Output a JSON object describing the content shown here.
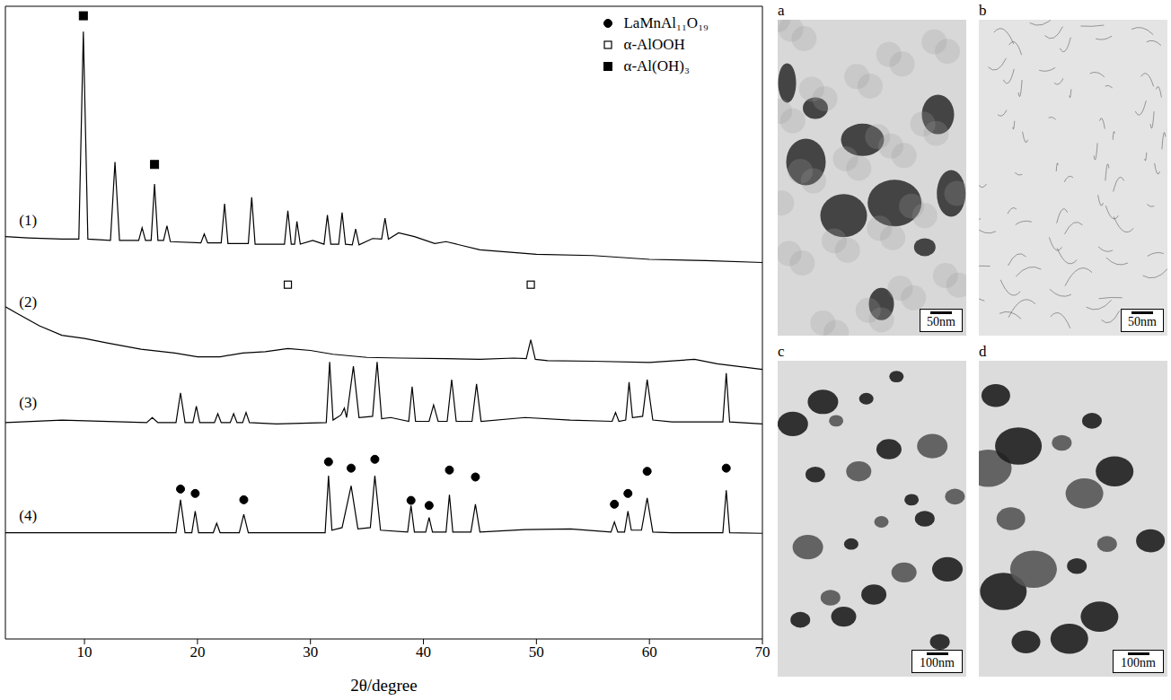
{
  "chart_data": {
    "type": "line",
    "xlabel": "2θ/degree",
    "xlim": [
      3,
      70
    ],
    "xticks": [
      10,
      20,
      30,
      40,
      50,
      60,
      70
    ],
    "ylim": [
      0,
      100
    ],
    "tick_labels": "x",
    "legend": "upper right",
    "series": [
      {
        "name": "(1)",
        "color": "#000000",
        "x": [
          3,
          5,
          8,
          9.5,
          9.9,
          10.3,
          12.3,
          12.7,
          13.1,
          14.8,
          15.1,
          15.4,
          15.9,
          16.2,
          16.5,
          17.0,
          17.3,
          17.6,
          20.3,
          20.6,
          20.9,
          22.1,
          22.4,
          22.7,
          24.5,
          24.8,
          25.1,
          27.7,
          28.0,
          28.3,
          28.6,
          28.8,
          29.1,
          30.2,
          31.2,
          31.5,
          31.8,
          32.5,
          32.8,
          33.1,
          33.7,
          34,
          34.3,
          35.5,
          36.3,
          36.6,
          36.9,
          37.8,
          39.2,
          41,
          42,
          45,
          50,
          55,
          60,
          65,
          70
        ],
        "values": [
          63.6,
          63.4,
          63.2,
          63.2,
          96.0,
          63.2,
          63.0,
          75.4,
          63.0,
          63.0,
          65.0,
          63.0,
          63.0,
          71.9,
          63.0,
          63.0,
          65.3,
          62.8,
          62.6,
          64.0,
          62.6,
          62.6,
          68.8,
          62.5,
          62.5,
          69.8,
          62.4,
          62.4,
          67.7,
          62.4,
          62.4,
          66.0,
          62.4,
          63.0,
          62.4,
          67.0,
          62.4,
          62.4,
          67.4,
          62.4,
          62.3,
          64.8,
          62.3,
          63.3,
          63.2,
          66.5,
          63.2,
          64.2,
          63.6,
          62.5,
          62.8,
          61.5,
          60.8,
          60.6,
          60.0,
          59.8,
          59.5
        ]
      },
      {
        "name": "(2)",
        "color": "#000000",
        "x": [
          3,
          4,
          5,
          6,
          8,
          10,
          12,
          15,
          18,
          20,
          22,
          24,
          26,
          28,
          30,
          32,
          35,
          38,
          42,
          45,
          48,
          49.1,
          49.5,
          49.9,
          51,
          55,
          60,
          64,
          66,
          70
        ],
        "values": [
          52.5,
          51.5,
          50.5,
          49.5,
          48.0,
          47.5,
          46.8,
          45.8,
          45.2,
          44.6,
          44.6,
          45.2,
          45.4,
          45.9,
          45.6,
          45.0,
          44.5,
          44.4,
          44.3,
          44.2,
          44.4,
          44.3,
          47.3,
          44.2,
          44.0,
          43.9,
          43.7,
          44.2,
          43.5,
          42.6
        ]
      },
      {
        "name": "(3)",
        "color": "#000000",
        "x": [
          3,
          8,
          15.5,
          16,
          16.5,
          18.1,
          18.5,
          18.9,
          19.6,
          19.9,
          20.2,
          21.5,
          21.8,
          22.1,
          22.9,
          23.2,
          23.5,
          24.0,
          24.3,
          24.6,
          27,
          31.4,
          31.7,
          32.0,
          32.7,
          33.0,
          33.2,
          33.8,
          34.3,
          35.5,
          35.9,
          36.3,
          37.1,
          38.7,
          39.0,
          39.3,
          40.5,
          40.9,
          41.3,
          42.1,
          42.5,
          42.9,
          44.3,
          44.7,
          45.1,
          49.0,
          53,
          56.7,
          57.0,
          57.3,
          57.9,
          58.2,
          58.5,
          59.4,
          59.8,
          60.3,
          62,
          66.5,
          66.8,
          67.1,
          70
        ],
        "values": [
          34.2,
          34.6,
          34.2,
          35.0,
          34.2,
          34.2,
          38.9,
          34.2,
          34.2,
          36.8,
          34.2,
          34.2,
          35.6,
          34.2,
          34.2,
          35.6,
          34.2,
          34.2,
          35.8,
          34.2,
          34.0,
          34.2,
          43.8,
          34.6,
          35.4,
          36.5,
          35.0,
          43.1,
          35.0,
          35.2,
          43.8,
          34.8,
          35.0,
          34.4,
          39.9,
          34.4,
          34.4,
          37.0,
          34.4,
          34.4,
          41.0,
          34.4,
          34.4,
          40.3,
          34.4,
          35.0,
          34.6,
          34.4,
          35.8,
          34.4,
          34.6,
          40.6,
          35.0,
          35.2,
          41.0,
          34.6,
          34.3,
          34.3,
          42.0,
          34.3,
          34.0
        ]
      },
      {
        "name": "(4)",
        "color": "#000000",
        "x": [
          3,
          10,
          16,
          18.1,
          18.5,
          18.9,
          19.5,
          19.8,
          20.1,
          21.4,
          21.7,
          22.0,
          23.7,
          24.1,
          24.5,
          31.3,
          31.6,
          31.9,
          32.8,
          33.6,
          34.2,
          35.3,
          35.7,
          36.2,
          38.6,
          38.9,
          39.2,
          40.2,
          40.5,
          40.8,
          42.0,
          42.3,
          42.6,
          44.2,
          44.6,
          45.0,
          49,
          53,
          56.6,
          56.9,
          57.2,
          57.8,
          58.1,
          58.4,
          59.3,
          59.8,
          60.3,
          62,
          66.5,
          66.8,
          67.1,
          70
        ],
        "values": [
          16.8,
          16.8,
          16.8,
          16.8,
          22.0,
          16.8,
          16.8,
          20.2,
          16.8,
          16.8,
          18.3,
          16.8,
          16.8,
          19.7,
          16.8,
          16.8,
          25.8,
          17.2,
          17.6,
          24.2,
          17.4,
          17.6,
          25.8,
          17.2,
          16.9,
          21.1,
          16.9,
          16.9,
          19.2,
          16.9,
          16.9,
          22.8,
          16.9,
          16.9,
          21.3,
          16.9,
          17.3,
          17.4,
          16.9,
          18.5,
          16.9,
          16.9,
          20.2,
          17.2,
          17.2,
          22.3,
          16.9,
          16.8,
          16.8,
          23.5,
          16.8,
          16.7
        ]
      },
      {
        "name": "LaMnAl₁₁O₁₉",
        "type": "scatter",
        "marker": "circle",
        "color": "#000000",
        "x": [
          18.5,
          19.8,
          24.1,
          31.6,
          33.6,
          35.7,
          38.9,
          40.5,
          42.3,
          44.6,
          56.9,
          58.1,
          59.8,
          66.8
        ],
        "values": [
          23.7,
          23.0,
          22.0,
          28.0,
          27.0,
          28.4,
          21.9,
          21.1,
          26.7,
          25.6,
          21.3,
          23.0,
          26.5,
          27.0
        ]
      },
      {
        "name": "α-AlOOH",
        "type": "scatter",
        "marker": "open_square",
        "color": "#000000",
        "x": [
          28,
          49.5
        ],
        "values": [
          56.0,
          56.0
        ]
      },
      {
        "name": "α-Al(OH)₃",
        "type": "scatter",
        "marker": "square",
        "color": "#000000",
        "x": [
          9.9,
          16.2
        ],
        "values": [
          98.5,
          75.0
        ]
      }
    ]
  },
  "panels": [
    {
      "label": "a",
      "scale_bar": "50nm"
    },
    {
      "label": "b",
      "scale_bar": "50nm"
    },
    {
      "label": "c",
      "scale_bar": "100nm"
    },
    {
      "label": "d",
      "scale_bar": "100nm"
    }
  ]
}
